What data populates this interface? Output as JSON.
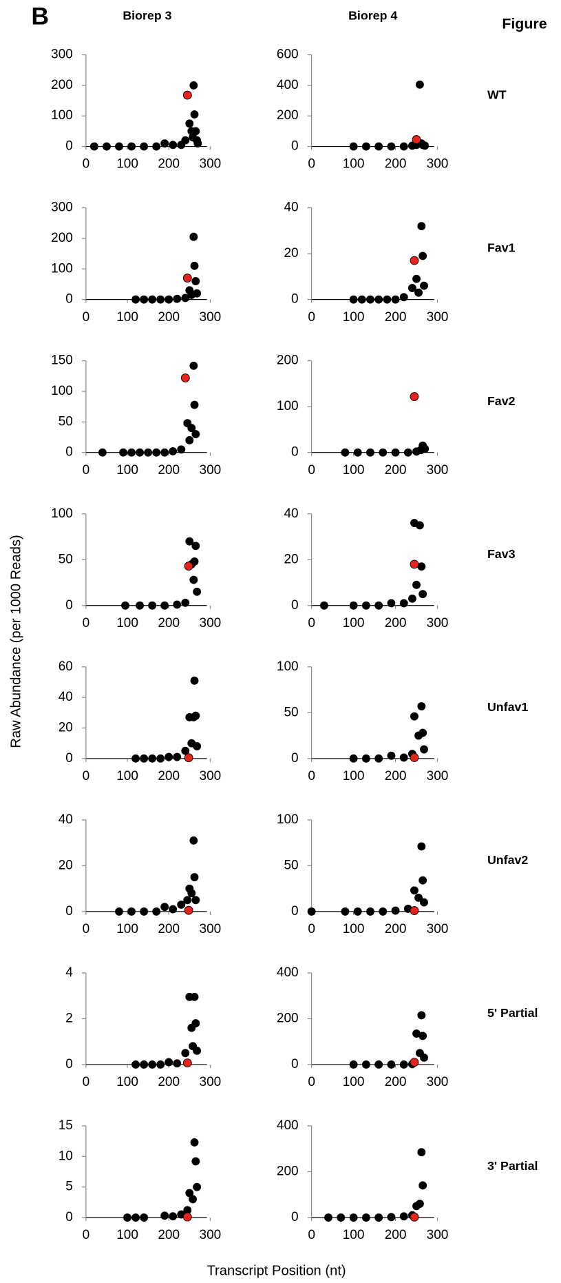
{
  "panel_label": "B",
  "figure_label": "Figure",
  "columns": [
    "Biorep 3",
    "Biorep 4"
  ],
  "rows": [
    "WT",
    "Fav1",
    "Fav2",
    "Fav3",
    "Unfav1",
    "Unfav2",
    "5' Partial",
    "3' Partial"
  ],
  "y_axis_label": "Raw Abundance (per 1000 Reads)",
  "x_axis_label": "Transcript Position (nt)",
  "chart_data": [
    {
      "type": "scatter",
      "xlim": [
        0,
        300
      ],
      "xticks": [
        0,
        100,
        200,
        300
      ],
      "ylim": [
        0,
        300
      ],
      "yticks": [
        0,
        100,
        200,
        300
      ],
      "series": [
        {
          "color": "#000000",
          "x": [
            20,
            50,
            80,
            110,
            140,
            170,
            190,
            210,
            230,
            240,
            250,
            255,
            258,
            260,
            262,
            265,
            268,
            270
          ],
          "values": [
            0,
            0,
            0,
            0,
            0,
            0,
            10,
            5,
            5,
            20,
            75,
            50,
            30,
            200,
            105,
            50,
            20,
            10
          ]
        },
        {
          "color": "#e8231c",
          "x": [
            245
          ],
          "values": [
            168
          ]
        }
      ]
    },
    {
      "type": "scatter",
      "xlim": [
        0,
        300
      ],
      "xticks": [
        0,
        100,
        200,
        300
      ],
      "ylim": [
        0,
        600
      ],
      "yticks": [
        0,
        200,
        400,
        600
      ],
      "series": [
        {
          "color": "#000000",
          "x": [
            100,
            130,
            160,
            190,
            220,
            240,
            250,
            258,
            262,
            265,
            270
          ],
          "values": [
            0,
            0,
            0,
            0,
            0,
            5,
            10,
            405,
            20,
            10,
            5
          ]
        },
        {
          "color": "#e8231c",
          "x": [
            250
          ],
          "values": [
            45
          ]
        }
      ]
    },
    {
      "type": "scatter",
      "xlim": [
        0,
        300
      ],
      "xticks": [
        0,
        100,
        200,
        300
      ],
      "ylim": [
        0,
        300
      ],
      "yticks": [
        0,
        100,
        200,
        300
      ],
      "series": [
        {
          "color": "#000000",
          "x": [
            120,
            140,
            160,
            180,
            200,
            220,
            240,
            250,
            255,
            260,
            262,
            265,
            268
          ],
          "values": [
            0,
            0,
            0,
            0,
            0,
            2,
            5,
            30,
            15,
            205,
            110,
            60,
            20
          ]
        },
        {
          "color": "#e8231c",
          "x": [
            245
          ],
          "values": [
            70
          ]
        }
      ]
    },
    {
      "type": "scatter",
      "xlim": [
        0,
        300
      ],
      "xticks": [
        0,
        100,
        200,
        300
      ],
      "ylim": [
        0,
        40
      ],
      "yticks": [
        0,
        20,
        40
      ],
      "series": [
        {
          "color": "#000000",
          "x": [
            100,
            120,
            140,
            160,
            180,
            200,
            220,
            240,
            250,
            255,
            262,
            265,
            268
          ],
          "values": [
            0,
            0,
            0,
            0,
            0,
            0,
            1,
            5,
            9,
            3,
            32,
            19,
            6
          ]
        },
        {
          "color": "#e8231c",
          "x": [
            245
          ],
          "values": [
            17
          ]
        }
      ]
    },
    {
      "type": "scatter",
      "xlim": [
        0,
        300
      ],
      "xticks": [
        0,
        100,
        200,
        300
      ],
      "ylim": [
        0,
        150
      ],
      "yticks": [
        0,
        50,
        100,
        150
      ],
      "series": [
        {
          "color": "#000000",
          "x": [
            40,
            90,
            110,
            130,
            150,
            170,
            190,
            210,
            230,
            245,
            250,
            255,
            260,
            262,
            265
          ],
          "values": [
            0,
            0,
            0,
            0,
            0,
            0,
            0,
            2,
            5,
            48,
            20,
            40,
            142,
            78,
            30
          ]
        },
        {
          "color": "#e8231c",
          "x": [
            240
          ],
          "values": [
            122
          ]
        }
      ]
    },
    {
      "type": "scatter",
      "xlim": [
        0,
        300
      ],
      "xticks": [
        0,
        100,
        200,
        300
      ],
      "ylim": [
        0,
        200
      ],
      "yticks": [
        0,
        100,
        200
      ],
      "series": [
        {
          "color": "#000000",
          "x": [
            80,
            110,
            140,
            170,
            200,
            230,
            250,
            260,
            265,
            270
          ],
          "values": [
            0,
            0,
            0,
            0,
            0,
            0,
            2,
            5,
            15,
            8
          ]
        },
        {
          "color": "#e8231c",
          "x": [
            245
          ],
          "values": [
            122
          ]
        }
      ]
    },
    {
      "type": "scatter",
      "xlim": [
        0,
        300
      ],
      "xticks": [
        0,
        100,
        200,
        300
      ],
      "ylim": [
        0,
        100
      ],
      "yticks": [
        0,
        50,
        100
      ],
      "series": [
        {
          "color": "#000000",
          "x": [
            95,
            130,
            160,
            190,
            220,
            240,
            250,
            255,
            260,
            262,
            265,
            268
          ],
          "values": [
            0,
            0,
            0,
            0,
            1,
            3,
            70,
            45,
            28,
            48,
            65,
            15
          ]
        },
        {
          "color": "#e8231c",
          "x": [
            248
          ],
          "values": [
            43
          ]
        }
      ]
    },
    {
      "type": "scatter",
      "xlim": [
        0,
        300
      ],
      "xticks": [
        0,
        100,
        200,
        300
      ],
      "ylim": [
        0,
        40
      ],
      "yticks": [
        0,
        20,
        40
      ],
      "series": [
        {
          "color": "#000000",
          "x": [
            30,
            100,
            130,
            160,
            190,
            220,
            240,
            245,
            250,
            258,
            262,
            265
          ],
          "values": [
            0,
            0,
            0,
            0,
            1,
            1,
            3,
            36,
            9,
            35,
            17,
            5
          ]
        },
        {
          "color": "#e8231c",
          "x": [
            245
          ],
          "values": [
            18
          ]
        }
      ]
    },
    {
      "type": "scatter",
      "xlim": [
        0,
        300
      ],
      "xticks": [
        0,
        100,
        200,
        300
      ],
      "ylim": [
        0,
        60
      ],
      "yticks": [
        0,
        20,
        40,
        60
      ],
      "series": [
        {
          "color": "#000000",
          "x": [
            120,
            140,
            160,
            180,
            200,
            220,
            240,
            250,
            255,
            260,
            262,
            265,
            268
          ],
          "values": [
            0,
            0,
            0,
            0,
            1,
            1,
            5,
            27,
            10,
            27,
            51,
            28,
            8
          ]
        },
        {
          "color": "#e8231c",
          "x": [
            248
          ],
          "values": [
            0.5
          ]
        }
      ]
    },
    {
      "type": "scatter",
      "xlim": [
        0,
        300
      ],
      "xticks": [
        0,
        100,
        200,
        300
      ],
      "ylim": [
        0,
        100
      ],
      "yticks": [
        0,
        50,
        100
      ],
      "series": [
        {
          "color": "#000000",
          "x": [
            100,
            130,
            160,
            190,
            220,
            240,
            245,
            255,
            262,
            265,
            268
          ],
          "values": [
            0,
            0,
            0,
            3,
            1,
            5,
            46,
            25,
            57,
            28,
            10
          ]
        },
        {
          "color": "#e8231c",
          "x": [
            245
          ],
          "values": [
            1
          ]
        }
      ]
    },
    {
      "type": "scatter",
      "xlim": [
        0,
        300
      ],
      "xticks": [
        0,
        100,
        200,
        300
      ],
      "ylim": [
        0,
        40
      ],
      "yticks": [
        0,
        20,
        40
      ],
      "series": [
        {
          "color": "#000000",
          "x": [
            80,
            110,
            140,
            170,
            190,
            210,
            230,
            245,
            250,
            255,
            260,
            262,
            265
          ],
          "values": [
            0,
            0,
            0,
            0,
            2,
            1,
            3,
            5,
            10,
            8,
            31,
            15,
            5
          ]
        },
        {
          "color": "#e8231c",
          "x": [
            248
          ],
          "values": [
            0.5
          ]
        }
      ]
    },
    {
      "type": "scatter",
      "xlim": [
        0,
        300
      ],
      "xticks": [
        0,
        100,
        200,
        300
      ],
      "ylim": [
        0,
        100
      ],
      "yticks": [
        0,
        50,
        100
      ],
      "series": [
        {
          "color": "#000000",
          "x": [
            0,
            80,
            110,
            140,
            170,
            200,
            230,
            245,
            255,
            262,
            265,
            268
          ],
          "values": [
            0,
            0,
            0,
            0,
            0,
            1,
            3,
            23,
            15,
            71,
            34,
            10
          ]
        },
        {
          "color": "#e8231c",
          "x": [
            245
          ],
          "values": [
            1
          ]
        }
      ]
    },
    {
      "type": "scatter",
      "xlim": [
        0,
        300
      ],
      "xticks": [
        0,
        100,
        200,
        300
      ],
      "ylim": [
        0,
        4
      ],
      "yticks": [
        0,
        2,
        4
      ],
      "series": [
        {
          "color": "#000000",
          "x": [
            120,
            140,
            160,
            180,
            200,
            220,
            240,
            250,
            255,
            258,
            262,
            265,
            268
          ],
          "values": [
            0,
            0,
            0,
            0,
            0.1,
            0.05,
            0.5,
            2.95,
            1.6,
            0.8,
            2.95,
            1.8,
            0.6
          ]
        },
        {
          "color": "#e8231c",
          "x": [
            245
          ],
          "values": [
            0.07
          ]
        }
      ]
    },
    {
      "type": "scatter",
      "xlim": [
        0,
        300
      ],
      "xticks": [
        0,
        100,
        200,
        300
      ],
      "ylim": [
        0,
        400
      ],
      "yticks": [
        0,
        200,
        400
      ],
      "series": [
        {
          "color": "#000000",
          "x": [
            100,
            130,
            160,
            190,
            220,
            240,
            250,
            258,
            262,
            265,
            268
          ],
          "values": [
            0,
            0,
            0,
            0,
            0,
            2,
            135,
            50,
            215,
            125,
            30
          ]
        },
        {
          "color": "#e8231c",
          "x": [
            245
          ],
          "values": [
            10
          ]
        }
      ]
    },
    {
      "type": "scatter",
      "xlim": [
        0,
        300
      ],
      "xticks": [
        0,
        100,
        200,
        300
      ],
      "ylim": [
        0,
        15
      ],
      "yticks": [
        0,
        5,
        10,
        15
      ],
      "series": [
        {
          "color": "#000000",
          "x": [
            100,
            120,
            140,
            190,
            210,
            230,
            245,
            250,
            258,
            262,
            265,
            268
          ],
          "values": [
            0,
            0,
            0,
            0.3,
            0.2,
            0.5,
            1.2,
            4,
            3,
            12.3,
            9.2,
            5
          ]
        },
        {
          "color": "#e8231c",
          "x": [
            245
          ],
          "values": [
            0.1
          ]
        }
      ]
    },
    {
      "type": "scatter",
      "xlim": [
        0,
        300
      ],
      "xticks": [
        0,
        100,
        200,
        300
      ],
      "ylim": [
        0,
        400
      ],
      "yticks": [
        0,
        200,
        400
      ],
      "series": [
        {
          "color": "#000000",
          "x": [
            40,
            70,
            100,
            130,
            160,
            190,
            220,
            240,
            250,
            258,
            262,
            265
          ],
          "values": [
            0,
            0,
            0,
            0,
            0,
            2,
            5,
            10,
            50,
            60,
            285,
            140
          ]
        },
        {
          "color": "#e8231c",
          "x": [
            245
          ],
          "values": [
            2
          ]
        }
      ]
    }
  ]
}
